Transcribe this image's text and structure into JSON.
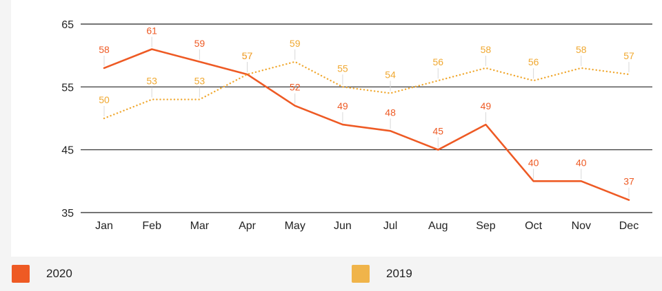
{
  "chart_data": {
    "type": "line",
    "title": "",
    "xlabel": "",
    "ylabel": "",
    "categories": [
      "Jan",
      "Feb",
      "Mar",
      "Apr",
      "May",
      "Jun",
      "Jul",
      "Aug",
      "Sep",
      "Oct",
      "Nov",
      "Dec"
    ],
    "ylim": [
      35,
      65
    ],
    "yticks": [
      35,
      45,
      55,
      65
    ],
    "grid": "horizontal",
    "legend_position": "bottom",
    "series": [
      {
        "name": "2020",
        "color": "#ee5a24",
        "line_style": "solid",
        "values": [
          58,
          61,
          59,
          57,
          52,
          49,
          48,
          45,
          49,
          40,
          40,
          37
        ]
      },
      {
        "name": "2019",
        "color": "#f0a830",
        "line_style": "dotted",
        "values": [
          50,
          53,
          53,
          57,
          59,
          55,
          54,
          56,
          58,
          56,
          58,
          57
        ]
      }
    ]
  },
  "legend": {
    "items": [
      {
        "label": "2020",
        "color": "#ee5a24"
      },
      {
        "label": "2019",
        "color": "#f0b44a"
      }
    ]
  }
}
